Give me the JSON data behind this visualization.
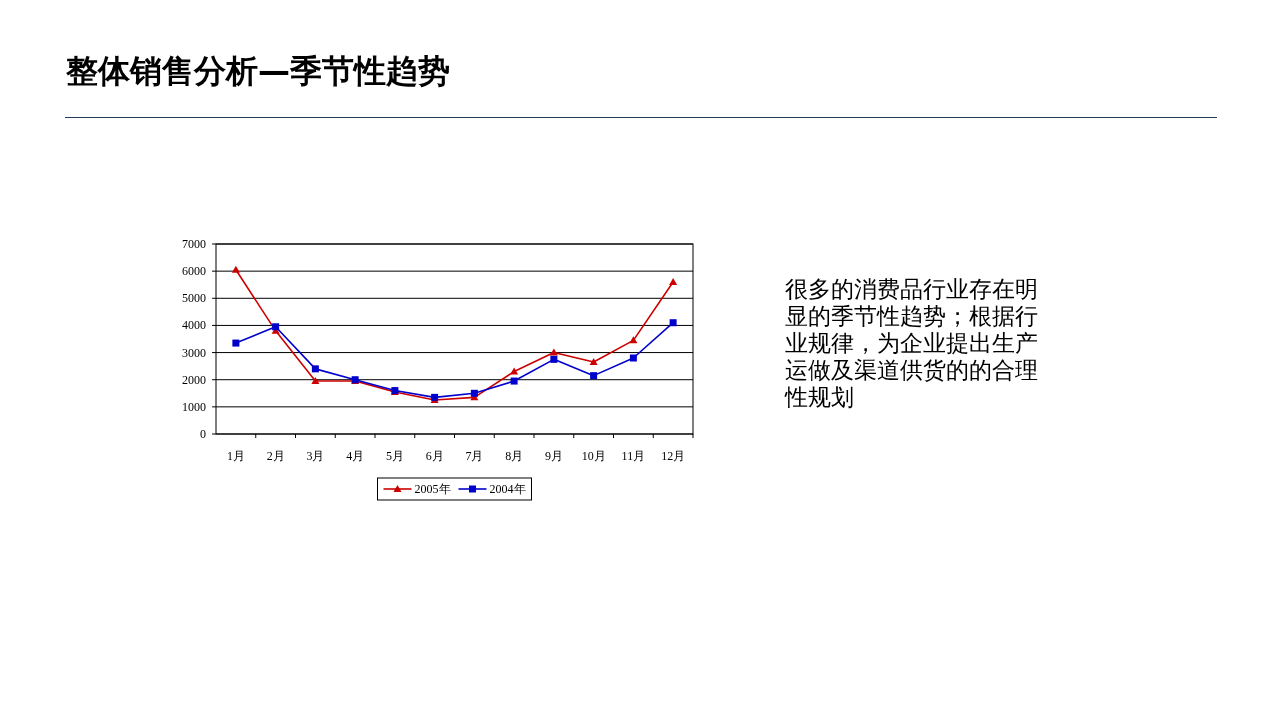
{
  "chart_data": {
    "type": "line",
    "title": "整体销售分析—季节性趋势",
    "categories": [
      "1月",
      "2月",
      "3月",
      "4月",
      "5月",
      "6月",
      "7月",
      "8月",
      "9月",
      "10月",
      "11月",
      "12月"
    ],
    "series": [
      {
        "name": "2005年",
        "color": "#cc0000",
        "marker": "triangle",
        "values": [
          6050,
          3800,
          1950,
          1950,
          1550,
          1250,
          1350,
          2300,
          3000,
          2650,
          3450,
          5600
        ]
      },
      {
        "name": "2004年",
        "color": "#0000cc",
        "marker": "square",
        "values": [
          3350,
          3950,
          2400,
          2000,
          1600,
          1350,
          1500,
          1950,
          2750,
          2150,
          2800,
          4100
        ]
      }
    ],
    "ylim": [
      0,
      7000
    ],
    "yticks": [
      0,
      1000,
      2000,
      3000,
      4000,
      5000,
      6000,
      7000
    ],
    "grid": "y",
    "legend": "bottom",
    "annotations": [
      "很多的消费品行业存在明显的季节性趋势；根据行业规律，为企业提出生产运做及渠道供货的的合理性规划"
    ]
  }
}
